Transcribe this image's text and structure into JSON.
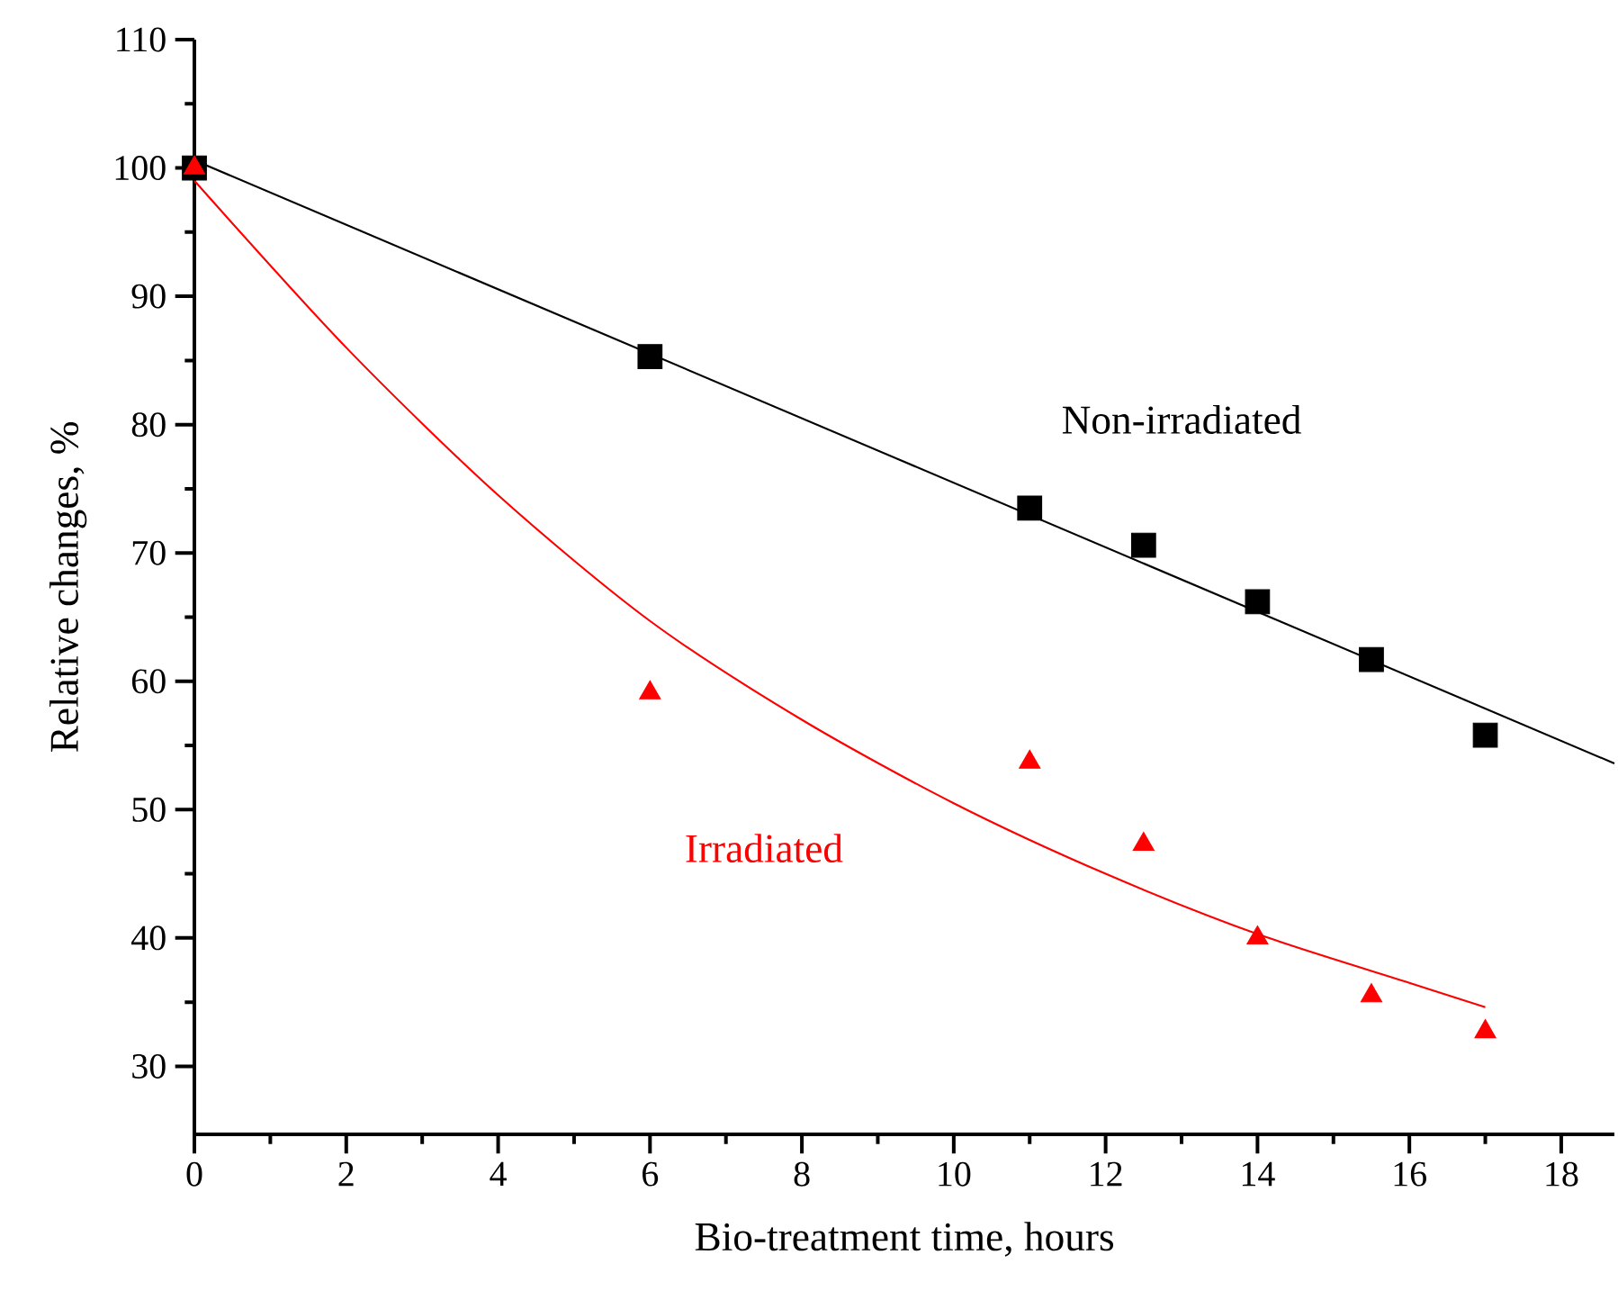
{
  "chart_data": {
    "type": "scatter",
    "xlabel": "Bio-treatment time, hours",
    "ylabel": "Relative changes, %",
    "xlim": [
      0,
      18.7
    ],
    "ylim": [
      24.7,
      110
    ],
    "xticks": [
      0,
      2,
      4,
      6,
      8,
      10,
      12,
      14,
      16,
      18
    ],
    "yticks": [
      30,
      40,
      50,
      60,
      70,
      80,
      90,
      100,
      110
    ],
    "grid": false,
    "series": [
      {
        "type": "line",
        "color": "#000000",
        "marker": "none",
        "x": [
          0,
          18.7
        ],
        "values": [
          100.6,
          53.6
        ]
      },
      {
        "type": "line",
        "color": "#ff0000",
        "marker": "none",
        "x": [
          0,
          2,
          4,
          6,
          8,
          10,
          12,
          14,
          16,
          17
        ],
        "values": [
          99,
          86,
          74.5,
          64.7,
          57,
          50.5,
          45,
          40.3,
          36.5,
          34.6
        ]
      },
      {
        "name": "Non-irradiated",
        "color": "#000000",
        "marker": "square",
        "x": [
          0,
          6,
          11,
          12.5,
          14,
          15.5,
          17
        ],
        "values": [
          100,
          85.3,
          73.5,
          70.6,
          66.2,
          61.7,
          55.8
        ]
      },
      {
        "name": "Irradiated",
        "color": "#ff0000",
        "marker": "triangle",
        "x": [
          0,
          6,
          11,
          12.5,
          14,
          15.5,
          17
        ],
        "values": [
          100,
          59.1,
          53.7,
          47.3,
          40,
          35.5,
          32.7
        ]
      }
    ]
  }
}
